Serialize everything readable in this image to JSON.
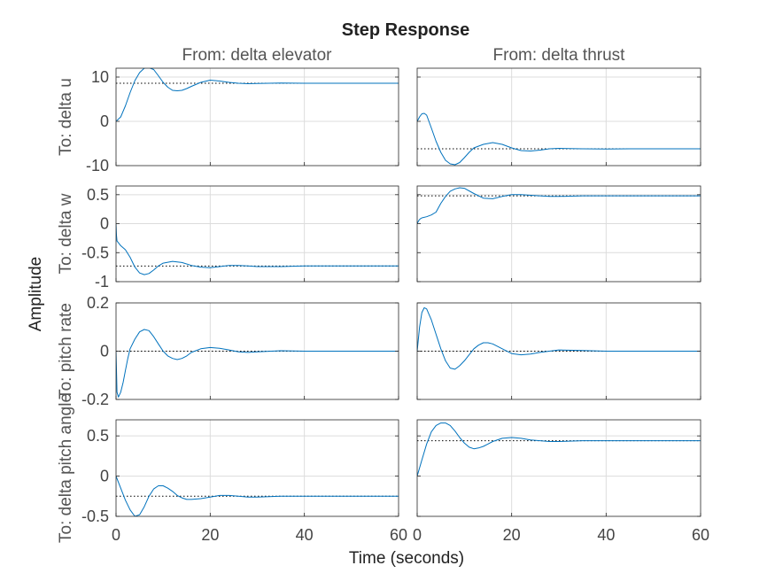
{
  "chart_data": {
    "type": "line",
    "title": "Step Response",
    "xlabel": "Time (seconds)",
    "ylabel": "Amplitude",
    "xlim": [
      0,
      60
    ],
    "xticks": [
      0,
      20,
      40,
      60
    ],
    "grid": true,
    "line_color": "#0072BD",
    "steady_state_style": "black dotted",
    "inputs": [
      "From: delta elevator",
      "From: delta thrust"
    ],
    "outputs": [
      {
        "label": "To: delta u",
        "ylim": [
          -10,
          12
        ],
        "yticks": [
          -10,
          0,
          10
        ]
      },
      {
        "label": "To: delta w",
        "ylim": [
          -1,
          0.65
        ],
        "yticks": [
          -1,
          -0.5,
          0,
          0.5
        ]
      },
      {
        "label": "To: pitch rate",
        "ylim": [
          -0.2,
          0.2
        ],
        "yticks": [
          -0.2,
          0,
          0.2
        ]
      },
      {
        "label": "To: delta pitch angle",
        "ylim": [
          -0.5,
          0.7
        ],
        "yticks": [
          -0.5,
          0,
          0.5
        ]
      }
    ],
    "responses": [
      [
        {
          "x": [
            0,
            1,
            2,
            3,
            4,
            5,
            6,
            7,
            8,
            9,
            10,
            11,
            12,
            13,
            14,
            15,
            16,
            18,
            20,
            22,
            24,
            26,
            28,
            30,
            35,
            40,
            45,
            50,
            55,
            60
          ],
          "y": [
            0,
            1,
            3.5,
            6.5,
            9.2,
            11,
            12,
            12.1,
            11.7,
            10.3,
            8.8,
            7.7,
            7,
            6.9,
            7,
            7.4,
            7.9,
            8.8,
            9.3,
            9.1,
            8.8,
            8.6,
            8.5,
            8.55,
            8.65,
            8.6,
            8.6,
            8.6,
            8.6,
            8.6
          ],
          "final": 8.6
        },
        {
          "x": [
            0,
            0.5,
            1,
            1.5,
            2,
            3,
            4,
            5,
            6,
            7,
            8,
            9,
            10,
            11,
            12,
            14,
            16,
            18,
            20,
            22,
            24,
            26,
            28,
            30,
            35,
            40,
            45,
            50,
            55,
            60
          ],
          "y": [
            0,
            1,
            1.7,
            1.8,
            1.4,
            -1.5,
            -4.5,
            -7,
            -8.8,
            -9.6,
            -9.8,
            -9.3,
            -8.2,
            -7,
            -6,
            -5.2,
            -4.8,
            -5.2,
            -6,
            -6.6,
            -6.7,
            -6.5,
            -6.2,
            -6.1,
            -6.2,
            -6.25,
            -6.2,
            -6.2,
            -6.2,
            -6.2
          ],
          "final": -6.2
        }
      ],
      [
        {
          "x": [
            0,
            0.1,
            0.2,
            0.5,
            1,
            2,
            3,
            4,
            5,
            6,
            7,
            8,
            9,
            10,
            12,
            14,
            16,
            18,
            20,
            22,
            24,
            26,
            28,
            30,
            35,
            40,
            45,
            50,
            55,
            60
          ],
          "y": [
            0,
            -0.2,
            -0.3,
            -0.33,
            -0.38,
            -0.45,
            -0.58,
            -0.75,
            -0.85,
            -0.88,
            -0.86,
            -0.8,
            -0.73,
            -0.68,
            -0.65,
            -0.67,
            -0.72,
            -0.75,
            -0.76,
            -0.74,
            -0.72,
            -0.72,
            -0.73,
            -0.74,
            -0.74,
            -0.73,
            -0.73,
            -0.73,
            -0.73,
            -0.73
          ],
          "final": -0.73
        },
        {
          "x": [
            0,
            0.3,
            0.6,
            1,
            2,
            3,
            4,
            5,
            6,
            7,
            8,
            9,
            10,
            12,
            14,
            16,
            18,
            20,
            22,
            24,
            26,
            28,
            30,
            35,
            40,
            45,
            50,
            55,
            60
          ],
          "y": [
            0,
            0.05,
            0.08,
            0.1,
            0.12,
            0.15,
            0.2,
            0.35,
            0.47,
            0.56,
            0.6,
            0.62,
            0.61,
            0.52,
            0.44,
            0.43,
            0.47,
            0.5,
            0.5,
            0.49,
            0.48,
            0.47,
            0.47,
            0.48,
            0.48,
            0.48,
            0.48,
            0.48,
            0.48
          ],
          "final": 0.48
        }
      ],
      [
        {
          "x": [
            0,
            0.2,
            0.5,
            1,
            1.5,
            2,
            2.5,
            3,
            4,
            5,
            6,
            7,
            8,
            9,
            10,
            11,
            12,
            13,
            14,
            15,
            16,
            18,
            20,
            22,
            24,
            26,
            28,
            30,
            35,
            40,
            45,
            50,
            55,
            60
          ],
          "y": [
            0,
            -0.17,
            -0.19,
            -0.17,
            -0.13,
            -0.08,
            -0.03,
            0.01,
            0.05,
            0.08,
            0.09,
            0.085,
            0.06,
            0.03,
            0,
            -0.02,
            -0.03,
            -0.035,
            -0.03,
            -0.02,
            -0.005,
            0.01,
            0.015,
            0.012,
            0.005,
            -0.003,
            -0.005,
            -0.003,
            0.002,
            0,
            0,
            0,
            0,
            0
          ],
          "final": 0
        },
        {
          "x": [
            0,
            0.5,
            1,
            1.5,
            2,
            3,
            4,
            5,
            6,
            7,
            8,
            9,
            10,
            11,
            12,
            13,
            14,
            15,
            16,
            17,
            18,
            20,
            22,
            24,
            26,
            28,
            30,
            35,
            40,
            45,
            50,
            55,
            60
          ],
          "y": [
            0,
            0.1,
            0.16,
            0.18,
            0.175,
            0.13,
            0.07,
            0.01,
            -0.04,
            -0.07,
            -0.075,
            -0.06,
            -0.04,
            -0.015,
            0.01,
            0.025,
            0.035,
            0.035,
            0.03,
            0.02,
            0.01,
            -0.01,
            -0.015,
            -0.012,
            -0.005,
            0,
            0.005,
            0.003,
            0,
            0,
            0,
            0,
            0
          ],
          "final": 0
        }
      ],
      [
        {
          "x": [
            0,
            1,
            2,
            3,
            4,
            5,
            6,
            7,
            8,
            9,
            10,
            11,
            12,
            13,
            14,
            15,
            16,
            18,
            20,
            22,
            24,
            26,
            28,
            30,
            35,
            40,
            45,
            50,
            55,
            60
          ],
          "y": [
            0,
            -0.15,
            -0.3,
            -0.42,
            -0.5,
            -0.48,
            -0.38,
            -0.25,
            -0.16,
            -0.12,
            -0.12,
            -0.15,
            -0.19,
            -0.24,
            -0.27,
            -0.29,
            -0.29,
            -0.28,
            -0.26,
            -0.24,
            -0.24,
            -0.25,
            -0.26,
            -0.26,
            -0.25,
            -0.25,
            -0.25,
            -0.25,
            -0.25,
            -0.25
          ],
          "final": -0.25
        },
        {
          "x": [
            0,
            1,
            2,
            3,
            4,
            5,
            6,
            7,
            8,
            9,
            10,
            11,
            12,
            13,
            14,
            15,
            16,
            18,
            20,
            22,
            24,
            26,
            28,
            30,
            35,
            40,
            45,
            50,
            55,
            60
          ],
          "y": [
            0,
            0.2,
            0.4,
            0.55,
            0.63,
            0.66,
            0.66,
            0.63,
            0.56,
            0.48,
            0.41,
            0.36,
            0.34,
            0.35,
            0.37,
            0.4,
            0.43,
            0.47,
            0.48,
            0.47,
            0.45,
            0.44,
            0.43,
            0.43,
            0.44,
            0.44,
            0.44,
            0.44,
            0.44,
            0.44
          ],
          "final": 0.44
        }
      ]
    ]
  }
}
